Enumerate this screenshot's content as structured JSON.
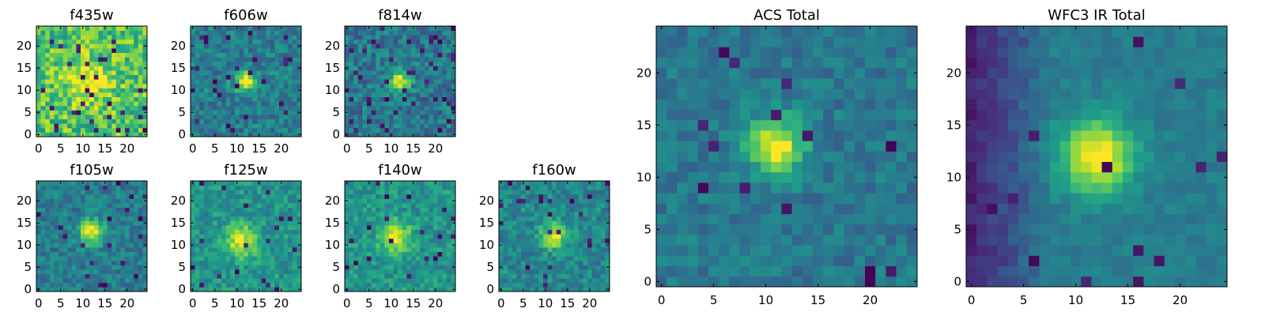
{
  "figure": {
    "colormap": "viridis",
    "tick_color": "#000000",
    "background": "#ffffff"
  },
  "chart_data": [
    {
      "type": "heatmap",
      "title": "f435w",
      "grid": [
        25,
        25
      ],
      "xlim": [
        -0.5,
        24.5
      ],
      "ylim": [
        -0.5,
        24.5
      ],
      "xticks": [
        0,
        5,
        10,
        15,
        20
      ],
      "yticks": [
        0,
        5,
        10,
        15,
        20
      ],
      "center": [
        11,
        12
      ],
      "peak_sigma": 3.2,
      "peak_strength": 0.35,
      "base_level": 0.72,
      "noise": 0.42,
      "dark_pixel_fraction": 0.05,
      "seed": 435
    },
    {
      "type": "heatmap",
      "title": "f606w",
      "grid": [
        25,
        25
      ],
      "xlim": [
        -0.5,
        24.5
      ],
      "ylim": [
        -0.5,
        24.5
      ],
      "xticks": [
        0,
        5,
        10,
        15,
        20
      ],
      "yticks": [
        0,
        5,
        10,
        15,
        20
      ],
      "center": [
        12,
        12
      ],
      "peak_sigma": 1.6,
      "peak_strength": 0.6,
      "base_level": 0.42,
      "noise": 0.3,
      "dark_pixel_fraction": 0.04,
      "seed": 606
    },
    {
      "type": "heatmap",
      "title": "f814w",
      "grid": [
        25,
        25
      ],
      "xlim": [
        -0.5,
        24.5
      ],
      "ylim": [
        -0.5,
        24.5
      ],
      "xticks": [
        0,
        5,
        10,
        15,
        20
      ],
      "yticks": [
        0,
        5,
        10,
        15,
        20
      ],
      "center": [
        12,
        12
      ],
      "peak_sigma": 1.6,
      "peak_strength": 0.6,
      "base_level": 0.4,
      "noise": 0.32,
      "dark_pixel_fraction": 0.05,
      "seed": 814
    },
    {
      "type": "heatmap",
      "title": "f105w",
      "grid": [
        25,
        25
      ],
      "xlim": [
        -0.5,
        24.5
      ],
      "ylim": [
        -0.5,
        24.5
      ],
      "xticks": [
        0,
        5,
        10,
        15,
        20
      ],
      "yticks": [
        0,
        5,
        10,
        15,
        20
      ],
      "center": [
        12,
        13
      ],
      "peak_sigma": 2.0,
      "peak_strength": 0.55,
      "base_level": 0.42,
      "noise": 0.26,
      "dark_pixel_fraction": 0.03,
      "seed": 105
    },
    {
      "type": "heatmap",
      "title": "f125w",
      "grid": [
        25,
        25
      ],
      "xlim": [
        -0.5,
        24.5
      ],
      "ylim": [
        -0.5,
        24.5
      ],
      "xticks": [
        0,
        5,
        10,
        15,
        20
      ],
      "yticks": [
        0,
        5,
        10,
        15,
        20
      ],
      "center": [
        11,
        11
      ],
      "peak_sigma": 2.5,
      "peak_strength": 0.45,
      "base_level": 0.52,
      "noise": 0.26,
      "dark_pixel_fraction": 0.03,
      "seed": 125
    },
    {
      "type": "heatmap",
      "title": "f140w",
      "grid": [
        25,
        25
      ],
      "xlim": [
        -0.5,
        24.5
      ],
      "ylim": [
        -0.5,
        24.5
      ],
      "xticks": [
        0,
        5,
        10,
        15,
        20
      ],
      "yticks": [
        0,
        5,
        10,
        15,
        20
      ],
      "center": [
        11,
        12
      ],
      "peak_sigma": 2.4,
      "peak_strength": 0.45,
      "base_level": 0.52,
      "noise": 0.26,
      "dark_pixel_fraction": 0.03,
      "seed": 140
    },
    {
      "type": "heatmap",
      "title": "f160w",
      "grid": [
        25,
        25
      ],
      "xlim": [
        -0.5,
        24.5
      ],
      "ylim": [
        -0.5,
        24.5
      ],
      "xticks": [
        0,
        5,
        10,
        15,
        20
      ],
      "yticks": [
        0,
        5,
        10,
        15,
        20
      ],
      "center": [
        12,
        12
      ],
      "peak_sigma": 2.0,
      "peak_strength": 0.5,
      "base_level": 0.46,
      "noise": 0.26,
      "dark_pixel_fraction": 0.04,
      "seed": 160
    },
    {
      "type": "heatmap",
      "title": "ACS Total",
      "grid": [
        25,
        25
      ],
      "xlim": [
        -0.5,
        24.5
      ],
      "ylim": [
        -0.5,
        24.5
      ],
      "xticks": [
        0,
        5,
        10,
        15,
        20
      ],
      "yticks": [
        0,
        5,
        10,
        15,
        20
      ],
      "center": [
        11,
        13
      ],
      "peak_sigma": 1.9,
      "peak_strength": 0.6,
      "base_level": 0.4,
      "noise": 0.2,
      "dark_pixel_fraction": 0.03,
      "seed": 7
    },
    {
      "type": "heatmap",
      "title": "WFC3 IR Total",
      "grid": [
        25,
        25
      ],
      "xlim": [
        -0.5,
        24.5
      ],
      "ylim": [
        -0.5,
        24.5
      ],
      "xticks": [
        0,
        5,
        10,
        15,
        20
      ],
      "yticks": [
        0,
        5,
        10,
        15,
        20
      ],
      "center": [
        12,
        12
      ],
      "peak_sigma": 2.4,
      "peak_strength": 0.62,
      "base_level": 0.42,
      "noise": 0.12,
      "left_gradient": 0.32,
      "dark_pixel_fraction": 0.02,
      "seed": 3
    }
  ]
}
